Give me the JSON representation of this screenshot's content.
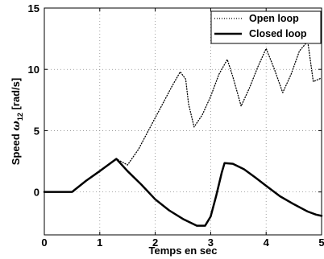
{
  "chart_data": {
    "type": "line",
    "xlabel": "Temps en sec",
    "ylabel_main": "Speed ",
    "ylabel_symbol": "ω",
    "ylabel_subscript": "12",
    "ylabel_unit": " [rad/s]",
    "xlim": [
      0,
      5
    ],
    "ylim": [
      -3.5,
      15
    ],
    "x_ticks": [
      "0",
      "1",
      "2",
      "3",
      "4",
      "5"
    ],
    "y_ticks": [
      "0",
      "5",
      "10",
      "15"
    ],
    "y_tick_values": [
      0,
      5,
      10,
      15
    ],
    "x_tick_values": [
      0,
      1,
      2,
      3,
      4,
      5
    ],
    "grid": true,
    "legend_position": "top-right",
    "series": [
      {
        "name": "Open loop",
        "style": "dotted",
        "color": "#000000",
        "x": [
          0,
          0.5,
          0.75,
          1.0,
          1.3,
          1.5,
          1.7,
          1.9,
          2.1,
          2.3,
          2.45,
          2.55,
          2.6,
          2.7,
          2.85,
          3.0,
          3.15,
          3.3,
          3.4,
          3.55,
          3.7,
          3.85,
          4.0,
          4.15,
          4.3,
          4.45,
          4.6,
          4.75,
          4.85,
          5.0
        ],
        "y": [
          0,
          0,
          0.9,
          1.7,
          2.7,
          2.2,
          3.5,
          5.2,
          6.9,
          8.6,
          9.8,
          9.2,
          7.2,
          5.3,
          6.3,
          7.8,
          9.6,
          10.8,
          9.4,
          7.0,
          8.5,
          10.2,
          11.7,
          10.0,
          8.1,
          9.6,
          11.5,
          12.3,
          9.0,
          9.3
        ]
      },
      {
        "name": "Closed loop",
        "style": "solid",
        "color": "#000000",
        "x": [
          0,
          0.5,
          0.75,
          1.0,
          1.3,
          1.5,
          1.75,
          2.0,
          2.25,
          2.5,
          2.75,
          2.9,
          3.0,
          3.1,
          3.2,
          3.25,
          3.4,
          3.6,
          3.8,
          4.0,
          4.25,
          4.5,
          4.75,
          4.9,
          5.0
        ],
        "y": [
          0,
          0,
          0.9,
          1.7,
          2.7,
          1.7,
          0.6,
          -0.6,
          -1.5,
          -2.2,
          -2.75,
          -2.75,
          -2.0,
          -0.3,
          1.6,
          2.35,
          2.3,
          1.85,
          1.2,
          0.5,
          -0.35,
          -1.0,
          -1.6,
          -1.85,
          -1.95
        ]
      }
    ]
  }
}
